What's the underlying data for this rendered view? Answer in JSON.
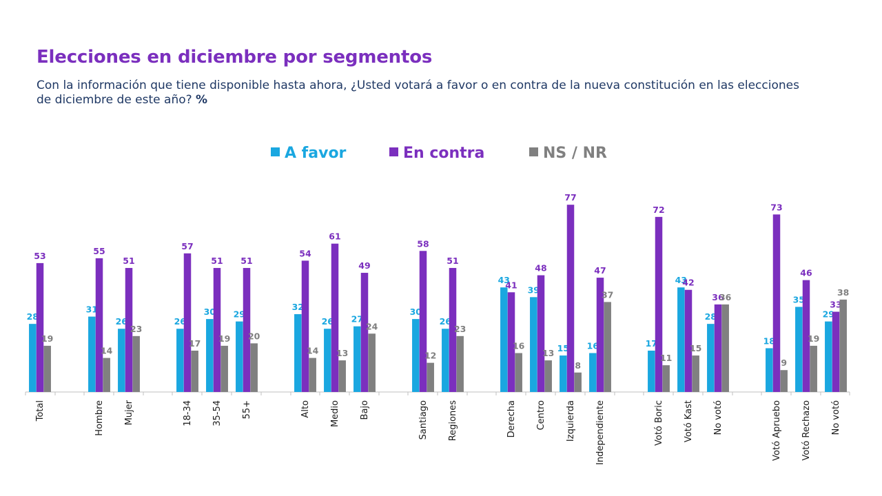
{
  "header": {
    "title": "Elecciones en diciembre por segmentos",
    "subtitle": "Con la información que tiene disponible hasta ahora, ¿Usted votará a favor o en contra de la nueva constitución en las elecciones de diciembre de este año?",
    "subtitle_unit": "%"
  },
  "colors": {
    "a_favor": "#1aa7e0",
    "en_contra": "#7b2fbe",
    "ns_nr": "#808080"
  },
  "chart_data": {
    "type": "bar",
    "categories": [
      "Total",
      "Hombre",
      "Mujer",
      "18-34",
      "35-54",
      "55+",
      "Alto",
      "Medio",
      "Bajo",
      "Santiago",
      "Regiones",
      "Derecha",
      "Centro",
      "Izquierda",
      "Independiente",
      "Votó Boric",
      "Votó Kast",
      "No votó",
      "Votó Apruebo",
      "Votó Rechazo",
      "No votó"
    ],
    "groups": [
      [
        "Total"
      ],
      [
        "Hombre",
        "Mujer"
      ],
      [
        "18-34",
        "35-54",
        "55+"
      ],
      [
        "Alto",
        "Medio",
        "Bajo"
      ],
      [
        "Santiago",
        "Regiones"
      ],
      [
        "Derecha",
        "Centro",
        "Izquierda",
        "Independiente"
      ],
      [
        "Votó Boric",
        "Votó Kast",
        "No votó"
      ],
      [
        "Votó Apruebo",
        "Votó Rechazo",
        "No votó"
      ]
    ],
    "series": [
      {
        "name": "A favor",
        "color": "#1aa7e0",
        "values": [
          28,
          31,
          26,
          26,
          30,
          29,
          32,
          26,
          27,
          30,
          26,
          43,
          39,
          15,
          16,
          17,
          43,
          28,
          18,
          35,
          29
        ]
      },
      {
        "name": "En contra",
        "color": "#7b2fbe",
        "values": [
          53,
          55,
          51,
          57,
          51,
          51,
          54,
          61,
          49,
          58,
          51,
          41,
          48,
          77,
          47,
          72,
          42,
          36,
          73,
          46,
          33
        ]
      },
      {
        "name": "NS / NR",
        "color": "#808080",
        "values": [
          19,
          14,
          23,
          17,
          19,
          20,
          14,
          13,
          24,
          12,
          23,
          16,
          13,
          8,
          37,
          11,
          15,
          36,
          9,
          19,
          38
        ]
      }
    ],
    "ylim": [
      0,
      80
    ],
    "grid": false,
    "legend_position": "top"
  }
}
